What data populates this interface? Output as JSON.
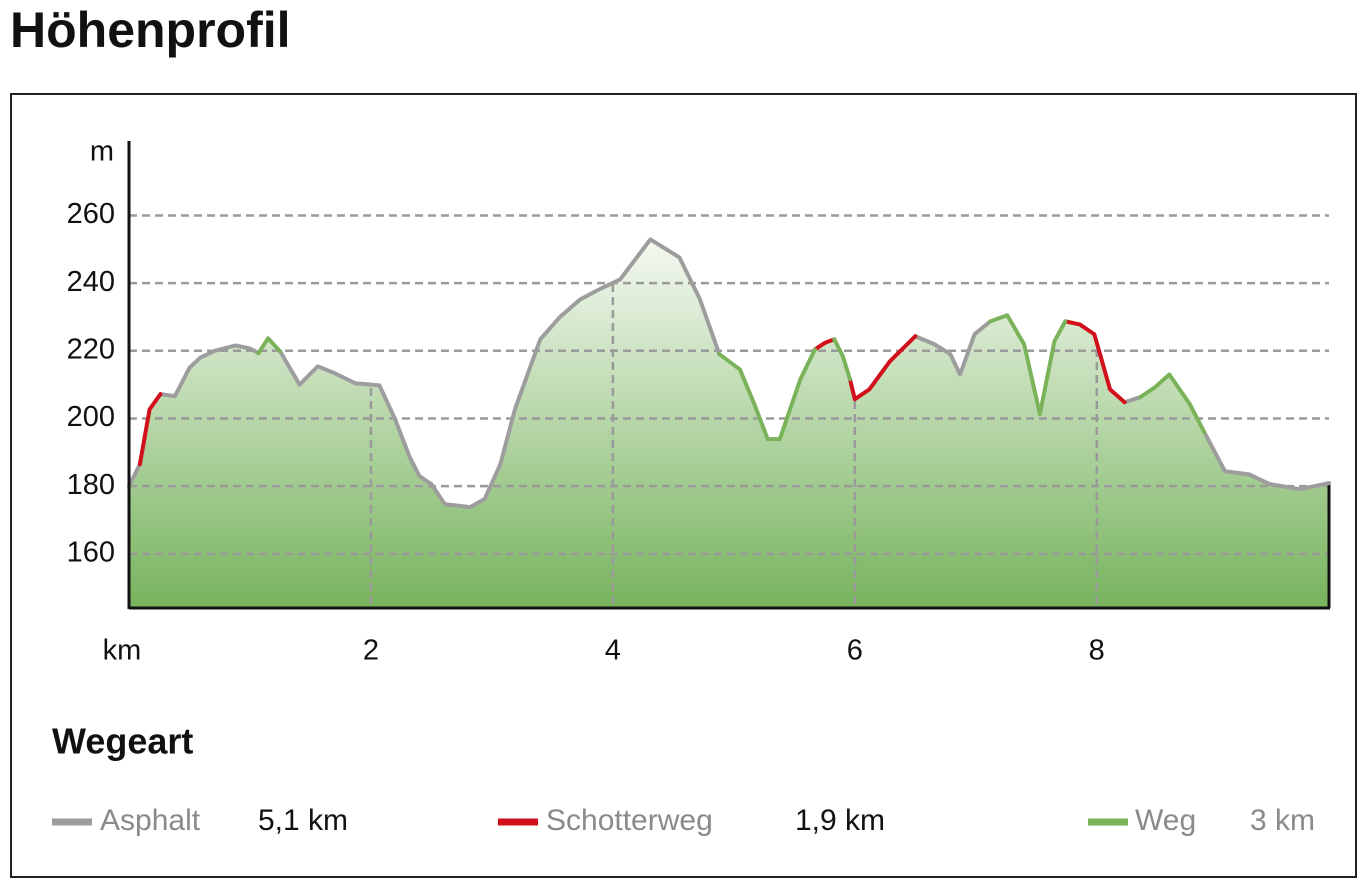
{
  "chart_data": {
    "type": "line",
    "title": "Höhenprofil",
    "x_label": "km",
    "y_label": "m",
    "x": [
      0,
      0.09,
      0.17,
      0.26,
      0.38,
      0.5,
      0.59,
      0.71,
      0.88,
      1.0,
      1.07,
      1.15,
      1.25,
      1.41,
      1.56,
      1.7,
      1.87,
      2.07,
      2.2,
      2.32,
      2.4,
      2.5,
      2.61,
      2.82,
      2.94,
      3.07,
      3.19,
      3.4,
      3.56,
      3.73,
      3.89,
      4.06,
      4.31,
      4.55,
      4.72,
      4.88,
      5.05,
      5.17,
      5.28,
      5.38,
      5.55,
      5.67,
      5.75,
      5.83,
      5.9,
      5.96,
      6.0,
      6.12,
      6.29,
      6.5,
      6.66,
      6.79,
      6.87,
      6.99,
      7.12,
      7.26,
      7.4,
      7.53,
      7.65,
      7.74,
      7.86,
      7.98,
      8.11,
      8.23,
      8.36,
      8.48,
      8.6,
      8.77,
      8.89,
      9.06,
      9.26,
      9.43,
      9.68,
      9.92
    ],
    "series": [
      {
        "name": "Asphalt",
        "total": "5,1 km",
        "color": "#9d9d9d",
        "values": [
          180,
          186.5,
          null,
          207.2,
          206.6,
          215,
          218,
          220,
          221.6,
          220.7,
          219.3,
          null,
          219.8,
          210,
          215.4,
          213.4,
          210.4,
          209.8,
          199.8,
          188.6,
          183,
          180.6,
          174.7,
          173.8,
          176.2,
          186.5,
          202.7,
          223.4,
          229.9,
          235.2,
          238.2,
          241.1,
          252.9,
          247.6,
          235.2,
          219,
          null,
          null,
          null,
          null,
          null,
          null,
          null,
          null,
          null,
          null,
          null,
          null,
          null,
          224.3,
          221.9,
          219,
          213,
          224.9,
          228.7,
          null,
          null,
          null,
          null,
          null,
          null,
          null,
          null,
          204.8,
          206.3,
          null,
          null,
          null,
          195.9,
          184.4,
          183.5,
          180.6,
          179.1,
          180.9
        ]
      },
      {
        "name": "Schotterweg",
        "total": "1,9 km",
        "color": "#d2101c",
        "values": [
          null,
          186.5,
          202.7,
          207.2,
          null,
          null,
          null,
          null,
          null,
          null,
          null,
          null,
          null,
          null,
          null,
          null,
          null,
          null,
          null,
          null,
          null,
          null,
          null,
          null,
          null,
          null,
          null,
          null,
          null,
          null,
          null,
          null,
          null,
          null,
          null,
          null,
          null,
          null,
          null,
          null,
          null,
          220.4,
          222.3,
          223.4,
          null,
          211.6,
          205.7,
          208.6,
          216.9,
          224.3,
          null,
          null,
          null,
          null,
          null,
          null,
          null,
          null,
          null,
          228.7,
          227.8,
          224.9,
          208.6,
          204.8,
          null,
          null,
          null,
          null,
          null,
          null,
          null,
          null,
          null,
          null
        ]
      },
      {
        "name": "Weg",
        "total": "3 km",
        "color": "#7bb35b",
        "values": [
          null,
          null,
          null,
          null,
          null,
          null,
          null,
          null,
          null,
          null,
          219.3,
          223.7,
          219.8,
          null,
          null,
          null,
          null,
          null,
          null,
          null,
          null,
          null,
          null,
          null,
          null,
          null,
          null,
          null,
          null,
          null,
          null,
          null,
          null,
          null,
          null,
          219,
          214.5,
          204.2,
          193.9,
          193.9,
          211.6,
          220.4,
          null,
          223.4,
          218.5,
          211.6,
          null,
          null,
          null,
          null,
          null,
          null,
          null,
          null,
          228.7,
          230.5,
          221.9,
          201.3,
          222.8,
          228.7,
          null,
          null,
          null,
          null,
          206.3,
          209.2,
          213,
          204.2,
          195.9,
          null,
          null,
          null,
          null,
          null
        ]
      }
    ],
    "legend_title": "Wegeart",
    "xlim": [
      0,
      9.92
    ],
    "ylim": [
      144,
      282
    ],
    "xticks": [
      2,
      4,
      6,
      8
    ],
    "yticks": [
      160,
      180,
      200,
      220,
      240,
      260
    ],
    "grid": true
  }
}
